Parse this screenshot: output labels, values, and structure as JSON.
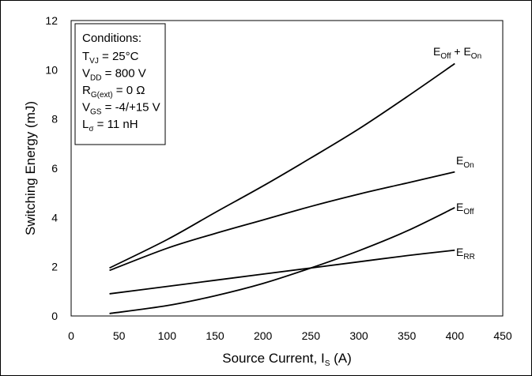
{
  "chart_data": {
    "type": "line",
    "xlabel": "Source Current, I",
    "xlabel_sub": "S",
    "xlabel_unit": " (A)",
    "ylabel": "Switching Energy (mJ)",
    "xlim": [
      0,
      450
    ],
    "ylim": [
      0,
      12
    ],
    "xticks": [
      0,
      50,
      100,
      150,
      200,
      250,
      300,
      350,
      400,
      450
    ],
    "yticks": [
      0,
      2,
      4,
      6,
      8,
      10,
      12
    ],
    "grid": false,
    "series": [
      {
        "name": "EOff + EOn",
        "label_main": "E",
        "label_sub": "Off",
        "label_tail": " + E",
        "label_sub2": "On",
        "x": [
          40,
          100,
          150,
          200,
          250,
          300,
          350,
          400
        ],
        "y": [
          1.95,
          3.1,
          4.2,
          5.28,
          6.42,
          7.6,
          8.9,
          10.25
        ]
      },
      {
        "name": "EOn",
        "label_main": "E",
        "label_sub": "On",
        "x": [
          40,
          100,
          150,
          200,
          250,
          300,
          350,
          400
        ],
        "y": [
          1.85,
          2.75,
          3.35,
          3.9,
          4.45,
          4.95,
          5.4,
          5.85
        ]
      },
      {
        "name": "EOff",
        "label_main": "E",
        "label_sub": "Off",
        "x": [
          40,
          100,
          150,
          200,
          250,
          300,
          350,
          400
        ],
        "y": [
          0.1,
          0.42,
          0.82,
          1.32,
          1.95,
          2.65,
          3.45,
          4.4
        ]
      },
      {
        "name": "ERR",
        "label_main": "E",
        "label_sub": "RR",
        "x": [
          40,
          100,
          150,
          200,
          250,
          300,
          350,
          400
        ],
        "y": [
          0.9,
          1.2,
          1.45,
          1.7,
          1.95,
          2.2,
          2.45,
          2.67
        ]
      }
    ],
    "conditions": {
      "title": "Conditions:",
      "lines": [
        {
          "main": "T",
          "sub": "VJ",
          "tail": " = 25°C"
        },
        {
          "main": "V",
          "sub": "DD",
          "tail": " = 800 V"
        },
        {
          "main": "R",
          "sub": "G(ext)",
          "tail": " = 0 Ω"
        },
        {
          "main": "V",
          "sub": "GS",
          "tail": " = -4/+15 V"
        },
        {
          "main": "L",
          "sub": "σ",
          "tail": " = 11 nH"
        }
      ]
    }
  }
}
